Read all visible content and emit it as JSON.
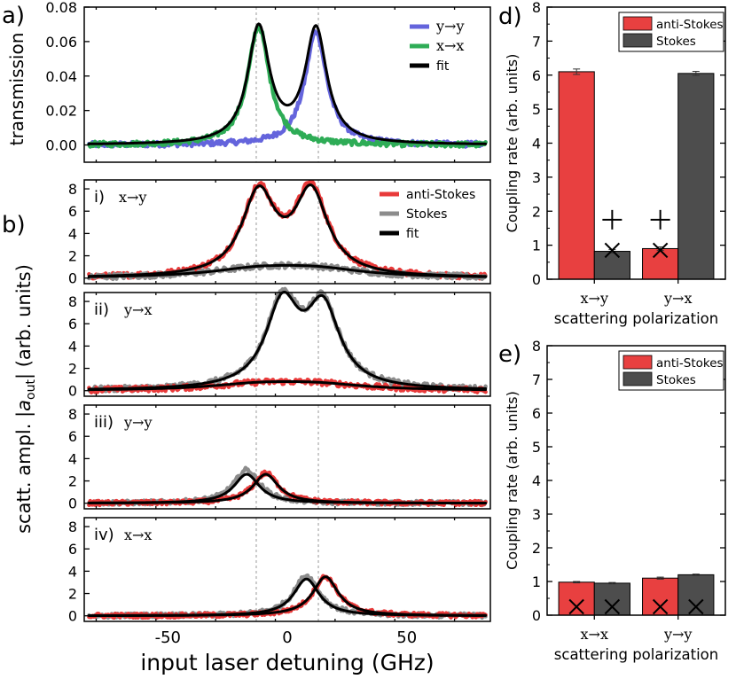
{
  "chart_data": [
    {
      "id": "a",
      "panel_label": "a)",
      "type": "line",
      "ylabel": "transmission",
      "xlim": [
        -85,
        85
      ],
      "ylim": [
        -0.01,
        0.08
      ],
      "yticks": [
        0.0,
        0.02,
        0.04,
        0.06,
        0.08
      ],
      "ytick_labels": [
        "0.00",
        "0.02",
        "0.04",
        "0.06",
        "0.08"
      ],
      "xticks": [
        -50,
        0,
        50
      ],
      "grid": false,
      "legend_position": "top-right",
      "vlines": [
        -13,
        13
      ],
      "series": [
        {
          "name": "y→y",
          "color": "#6464dc",
          "kind": "data",
          "model": "lorentz",
          "center": 12,
          "width": 5.5,
          "amplitude": 0.066,
          "offset": 0.0,
          "noise": 0.0015
        },
        {
          "name": "x→x",
          "color": "#2eac56",
          "kind": "data",
          "model": "lorentz",
          "center": -12,
          "width": 5.5,
          "amplitude": 0.069,
          "offset": 0.0,
          "noise": 0.0015
        },
        {
          "name": "fit",
          "color": "#000000",
          "kind": "fit",
          "model": "lorentz2",
          "centers": [
            -12,
            12
          ],
          "width": 5.5,
          "amplitudes": [
            0.067,
            0.066
          ]
        }
      ]
    },
    {
      "id": "b1",
      "panel_label": "b)",
      "sub_label": "i)",
      "polarization": "x→y",
      "type": "line",
      "xlim": [
        -85,
        85
      ],
      "ylim": [
        -0.5,
        8.8
      ],
      "yticks": [
        0,
        2,
        4,
        6,
        8
      ],
      "legend_position": "top-right",
      "series": [
        {
          "name": "anti-Stokes",
          "color": "#e83a3a",
          "kind": "data",
          "model": "lorentz2",
          "centers": [
            -12,
            10
          ],
          "width": 8.5,
          "amplitudes": [
            7.4,
            7.6
          ],
          "noise": 0.25
        },
        {
          "name": "Stokes",
          "color": "#8c8c8c",
          "kind": "data",
          "model": "lorentz2",
          "centers": [
            -12,
            12
          ],
          "width": 25,
          "amplitudes": [
            0.7,
            0.7
          ],
          "noise": 0.25
        },
        {
          "name": "fit",
          "color": "#000000",
          "kind": "fit",
          "model": "lorentz2",
          "centers": [
            -12,
            10
          ],
          "width": 8.5,
          "amplitudes": [
            7.3,
            7.4
          ]
        },
        {
          "name": "",
          "color": "#000000",
          "kind": "fit",
          "model": "lorentz2",
          "centers": [
            -12,
            12
          ],
          "width": 25,
          "amplitudes": [
            0.7,
            0.7
          ]
        }
      ]
    },
    {
      "id": "b2",
      "sub_label": "ii)",
      "polarization": "y→x",
      "type": "line",
      "xlim": [
        -85,
        85
      ],
      "ylim": [
        -0.5,
        8.8
      ],
      "yticks": [
        0,
        2,
        4,
        6,
        8
      ],
      "series": [
        {
          "name": "Stokes",
          "color": "#8c8c8c",
          "kind": "data",
          "model": "lorentz2",
          "centers": [
            -2,
            15
          ],
          "width": 8.5,
          "amplitudes": [
            7.6,
            7.1
          ],
          "noise": 0.25
        },
        {
          "name": "anti-Stokes",
          "color": "#e83a3a",
          "kind": "data",
          "model": "lorentz2",
          "centers": [
            -12,
            12
          ],
          "width": 25,
          "amplitudes": [
            0.5,
            0.5
          ],
          "noise": 0.25
        },
        {
          "name": "fit",
          "color": "#000000",
          "kind": "fit",
          "model": "lorentz2",
          "centers": [
            -2,
            15
          ],
          "width": 8.5,
          "amplitudes": [
            7.4,
            7.0
          ]
        },
        {
          "name": "",
          "color": "#000000",
          "kind": "fit",
          "model": "lorentz2",
          "centers": [
            -12,
            12
          ],
          "width": 25,
          "amplitudes": [
            0.5,
            0.5
          ]
        }
      ]
    },
    {
      "id": "b3",
      "sub_label": "iii)",
      "polarization": "y→y",
      "type": "line",
      "xlim": [
        -85,
        85
      ],
      "ylim": [
        -0.5,
        8.8
      ],
      "yticks": [
        0,
        2,
        4,
        6,
        8
      ],
      "series": [
        {
          "name": "Stokes",
          "color": "#8c8c8c",
          "kind": "data",
          "model": "lorentz",
          "center": -17,
          "width": 6.5,
          "amplitude": 3.0,
          "noise": 0.2
        },
        {
          "name": "anti-Stokes",
          "color": "#e83a3a",
          "kind": "data",
          "model": "lorentz",
          "center": -9,
          "width": 6.5,
          "amplitude": 2.7,
          "noise": 0.2
        },
        {
          "name": "fit",
          "color": "#000000",
          "kind": "fit",
          "model": "lorentz",
          "center": -17,
          "width": 6.5,
          "amplitude": 2.6
        },
        {
          "name": "",
          "color": "#000000",
          "kind": "fit",
          "model": "lorentz",
          "center": -9,
          "width": 6.5,
          "amplitude": 2.6
        }
      ]
    },
    {
      "id": "b4",
      "sub_label": "iv)",
      "polarization": "x→x",
      "type": "line",
      "xlim": [
        -85,
        85
      ],
      "ylim": [
        -0.5,
        8.8
      ],
      "yticks": [
        0,
        2,
        4,
        6,
        8
      ],
      "xticks": [
        -50,
        0,
        50
      ],
      "xlabel": "input laser detuning (GHz)",
      "series": [
        {
          "name": "Stokes",
          "color": "#8c8c8c",
          "kind": "data",
          "model": "lorentz",
          "center": 8,
          "width": 6.5,
          "amplitude": 3.6,
          "noise": 0.2
        },
        {
          "name": "anti-Stokes",
          "color": "#e83a3a",
          "kind": "data",
          "model": "lorentz",
          "center": 16,
          "width": 6.5,
          "amplitude": 3.5,
          "noise": 0.2
        },
        {
          "name": "fit",
          "color": "#000000",
          "kind": "fit",
          "model": "lorentz",
          "center": 8,
          "width": 6.5,
          "amplitude": 3.3
        },
        {
          "name": "",
          "color": "#000000",
          "kind": "fit",
          "model": "lorentz",
          "center": 16,
          "width": 6.5,
          "amplitude": 3.5
        }
      ]
    },
    {
      "id": "d",
      "panel_label": "d)",
      "type": "bar",
      "ylabel": "Coupling rate (arb. units)",
      "xlabel": "scattering polarization",
      "categories": [
        "x→y",
        "y→x"
      ],
      "ylim": [
        0,
        8
      ],
      "yticks": [
        0,
        1,
        2,
        3,
        4,
        5,
        6,
        7,
        8
      ],
      "legend_position": "top-right",
      "series": [
        {
          "name": "anti-Stokes",
          "color": "#e84040",
          "values": [
            6.1,
            0.9
          ],
          "errors": [
            0.08,
            0.05
          ]
        },
        {
          "name": "Stokes",
          "color": "#4d4d4d",
          "values": [
            0.82,
            6.05
          ],
          "errors": [
            0.05,
            0.06
          ]
        }
      ],
      "markers": [
        {
          "symbol": "+",
          "category": "x→y",
          "series": "Stokes",
          "value": 1.75
        },
        {
          "symbol": "×",
          "category": "x→y",
          "series": "Stokes",
          "value": 0.85
        },
        {
          "symbol": "+",
          "category": "y→x",
          "series": "anti-Stokes",
          "value": 1.75
        },
        {
          "symbol": "×",
          "category": "y→x",
          "series": "anti-Stokes",
          "value": 0.85
        }
      ]
    },
    {
      "id": "e",
      "panel_label": "e)",
      "type": "bar",
      "ylabel": "Coupling rate (arb. units)",
      "xlabel": "scattering polarization",
      "categories": [
        "x→x",
        "y→y"
      ],
      "ylim": [
        0,
        8
      ],
      "yticks": [
        0,
        1,
        2,
        3,
        4,
        5,
        6,
        7,
        8
      ],
      "legend_position": "top-right",
      "series": [
        {
          "name": "anti-Stokes",
          "color": "#e84040",
          "values": [
            0.98,
            1.1
          ],
          "errors": [
            0.02,
            0.03
          ]
        },
        {
          "name": "Stokes",
          "color": "#4d4d4d",
          "values": [
            0.95,
            1.2
          ],
          "errors": [
            0.02,
            0.02
          ]
        }
      ],
      "markers": [
        {
          "symbol": "×",
          "category": "x→x",
          "series": "anti-Stokes",
          "value": 0.25
        },
        {
          "symbol": "×",
          "category": "x→x",
          "series": "Stokes",
          "value": 0.25
        },
        {
          "symbol": "×",
          "category": "y→y",
          "series": "anti-Stokes",
          "value": 0.25
        },
        {
          "symbol": "×",
          "category": "y→y",
          "series": "Stokes",
          "value": 0.25
        }
      ]
    }
  ],
  "shared_ylabel_b": "scatt. ampl. |a_out| (arb. units)",
  "shared_ylabel_b_parts": {
    "pre": "scatt. ampl. |",
    "sym": "a",
    "sub": "out",
    "post": "| (arb. units)"
  }
}
